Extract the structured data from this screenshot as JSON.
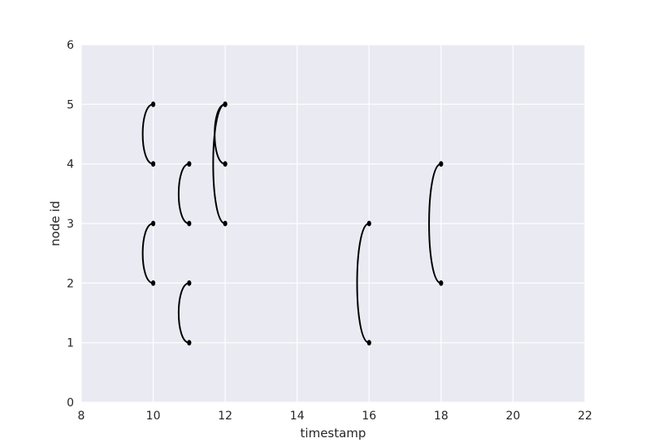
{
  "chart_data": {
    "type": "line",
    "title": "",
    "xlabel": "timestamp",
    "ylabel": "node id",
    "xlim": [
      8,
      22
    ],
    "ylim": [
      0,
      6
    ],
    "x_ticks": [
      "8",
      "10",
      "12",
      "14",
      "16",
      "18",
      "20",
      "22"
    ],
    "y_ticks": [
      "0",
      "1",
      "2",
      "3",
      "4",
      "5",
      "6"
    ],
    "grid": true,
    "background_color": "#eaeaf2",
    "grid_color": "#ffffff",
    "line_color": "#000000",
    "edges": [
      {
        "t": 10,
        "from": 4,
        "to": 5
      },
      {
        "t": 10,
        "from": 2,
        "to": 3
      },
      {
        "t": 11,
        "from": 3,
        "to": 4
      },
      {
        "t": 11,
        "from": 1,
        "to": 2
      },
      {
        "t": 12,
        "from": 4,
        "to": 5
      },
      {
        "t": 12,
        "from": 3,
        "to": 5
      },
      {
        "t": 16,
        "from": 1,
        "to": 3
      },
      {
        "t": 18,
        "from": 2,
        "to": 4
      }
    ]
  }
}
